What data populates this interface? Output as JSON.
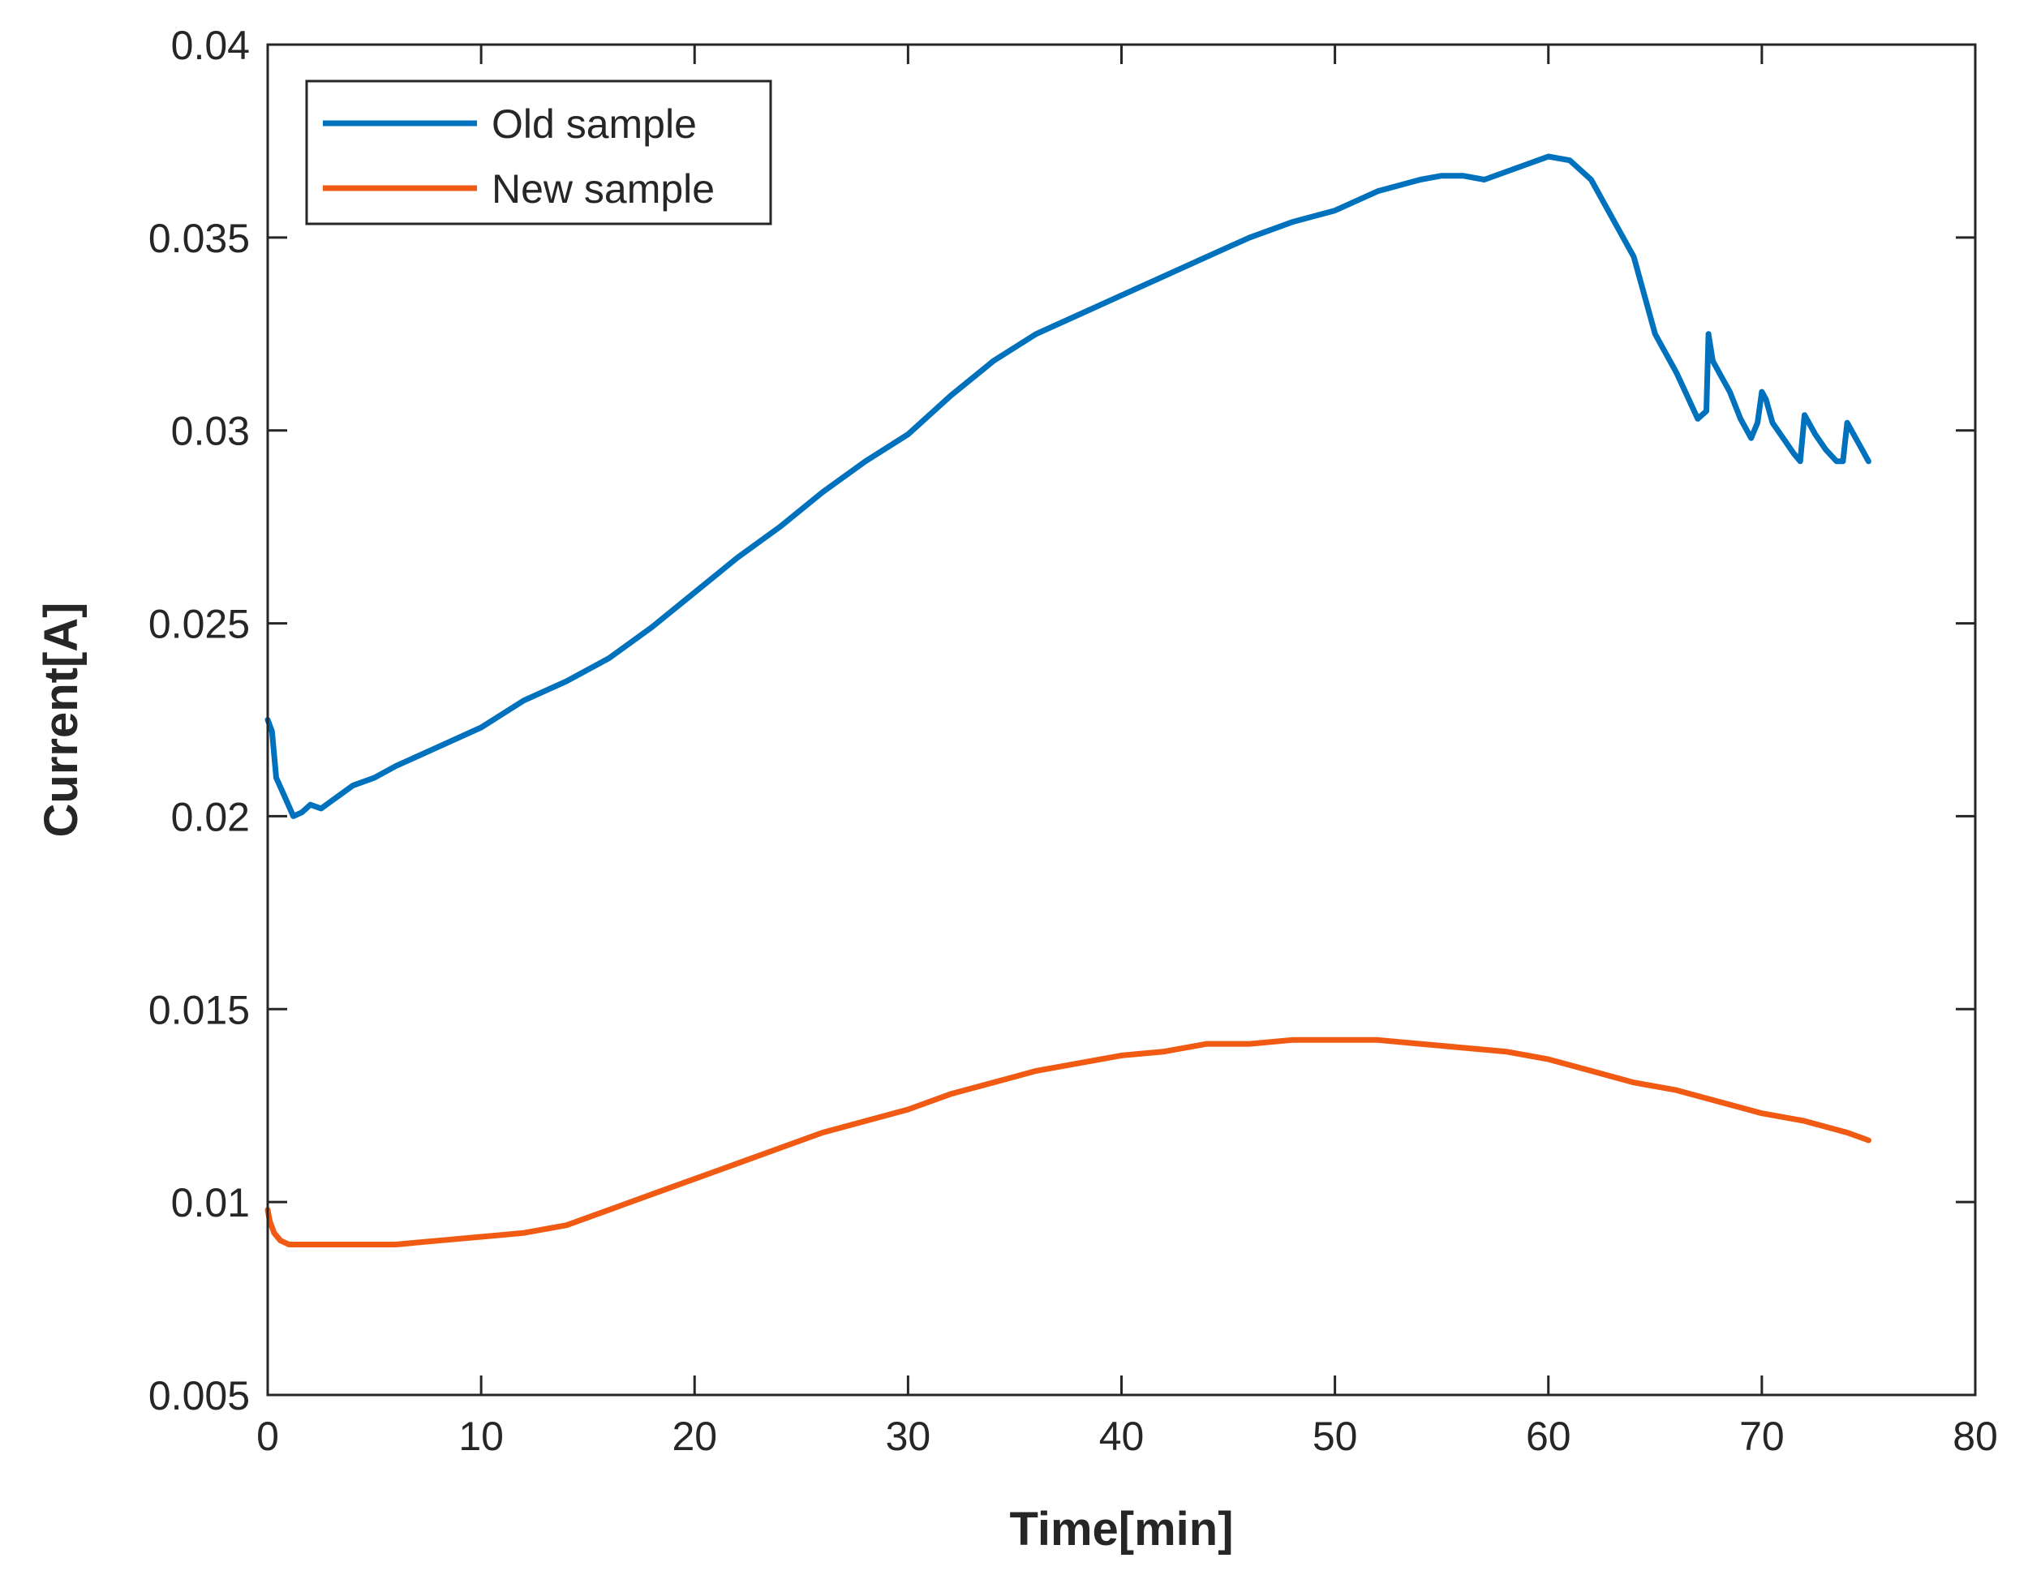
{
  "chart_data": {
    "type": "line",
    "title": "",
    "xlabel": "Time[min]",
    "ylabel": "Current[A]",
    "xlim": [
      0,
      80
    ],
    "ylim": [
      0.005,
      0.04
    ],
    "xticks": [
      0,
      10,
      20,
      30,
      40,
      50,
      60,
      70,
      80
    ],
    "xtick_labels": [
      "0",
      "10",
      "20",
      "30",
      "40",
      "50",
      "60",
      "70",
      "80"
    ],
    "yticks": [
      0.005,
      0.01,
      0.015,
      0.02,
      0.025,
      0.03,
      0.035,
      0.04
    ],
    "ytick_labels": [
      "0.005",
      "0.01",
      "0.015",
      "0.02",
      "0.025",
      "0.03",
      "0.035",
      "0.04"
    ],
    "grid": false,
    "legend_position": "top-left",
    "series": [
      {
        "name": "Old sample",
        "color": "#0072BD",
        "x": [
          0,
          0.2,
          0.4,
          0.8,
          1.2,
          1.6,
          2.0,
          2.5,
          3,
          4,
          5,
          6,
          8,
          10,
          12,
          14,
          16,
          18,
          20,
          22,
          24,
          26,
          28,
          30,
          32,
          34,
          36,
          38,
          40,
          42,
          44,
          46,
          48,
          50,
          52,
          54,
          55,
          56,
          57,
          58,
          59,
          60,
          61,
          62,
          63,
          64,
          65,
          66,
          67,
          67.4,
          67.5,
          67.7,
          68,
          68.5,
          69,
          69.5,
          69.8,
          70,
          70.2,
          70.5,
          71,
          71.5,
          71.8,
          72,
          72.2,
          72.5,
          73,
          73.5,
          73.8,
          74,
          74.3,
          74.6,
          75
        ],
        "y": [
          0.0225,
          0.0222,
          0.021,
          0.0205,
          0.02,
          0.0201,
          0.0203,
          0.0202,
          0.0204,
          0.0208,
          0.021,
          0.0213,
          0.0218,
          0.0223,
          0.023,
          0.0235,
          0.0241,
          0.0249,
          0.0258,
          0.0267,
          0.0275,
          0.0284,
          0.0292,
          0.0299,
          0.0309,
          0.0318,
          0.0325,
          0.033,
          0.0335,
          0.034,
          0.0345,
          0.035,
          0.0354,
          0.0357,
          0.0362,
          0.0365,
          0.0366,
          0.0366,
          0.0365,
          0.0367,
          0.0369,
          0.0371,
          0.037,
          0.0365,
          0.0355,
          0.0345,
          0.0325,
          0.0315,
          0.0303,
          0.0305,
          0.0325,
          0.0318,
          0.0315,
          0.031,
          0.0303,
          0.0298,
          0.0302,
          0.031,
          0.0308,
          0.0302,
          0.0298,
          0.0294,
          0.0292,
          0.0304,
          0.0302,
          0.0299,
          0.0295,
          0.0292,
          0.0292,
          0.0302,
          0.0299,
          0.0296,
          0.0292
        ]
      },
      {
        "name": "New sample",
        "color": "#F05A12",
        "x": [
          0,
          0.1,
          0.3,
          0.6,
          1,
          2,
          4,
          6,
          8,
          10,
          12,
          14,
          16,
          18,
          20,
          22,
          24,
          26,
          28,
          30,
          32,
          34,
          36,
          38,
          40,
          42,
          44,
          46,
          48,
          50,
          52,
          54,
          56,
          58,
          60,
          62,
          64,
          66,
          68,
          70,
          72,
          74,
          75
        ],
        "y": [
          0.0098,
          0.0095,
          0.0092,
          0.009,
          0.0089,
          0.0089,
          0.0089,
          0.0089,
          0.009,
          0.0091,
          0.0092,
          0.0094,
          0.0098,
          0.0102,
          0.0106,
          0.011,
          0.0114,
          0.0118,
          0.0121,
          0.0124,
          0.0128,
          0.0131,
          0.0134,
          0.0136,
          0.0138,
          0.0139,
          0.0141,
          0.0141,
          0.0142,
          0.0142,
          0.0142,
          0.0141,
          0.014,
          0.0139,
          0.0137,
          0.0134,
          0.0131,
          0.0129,
          0.0126,
          0.0123,
          0.0121,
          0.0118,
          0.0116
        ]
      }
    ]
  }
}
